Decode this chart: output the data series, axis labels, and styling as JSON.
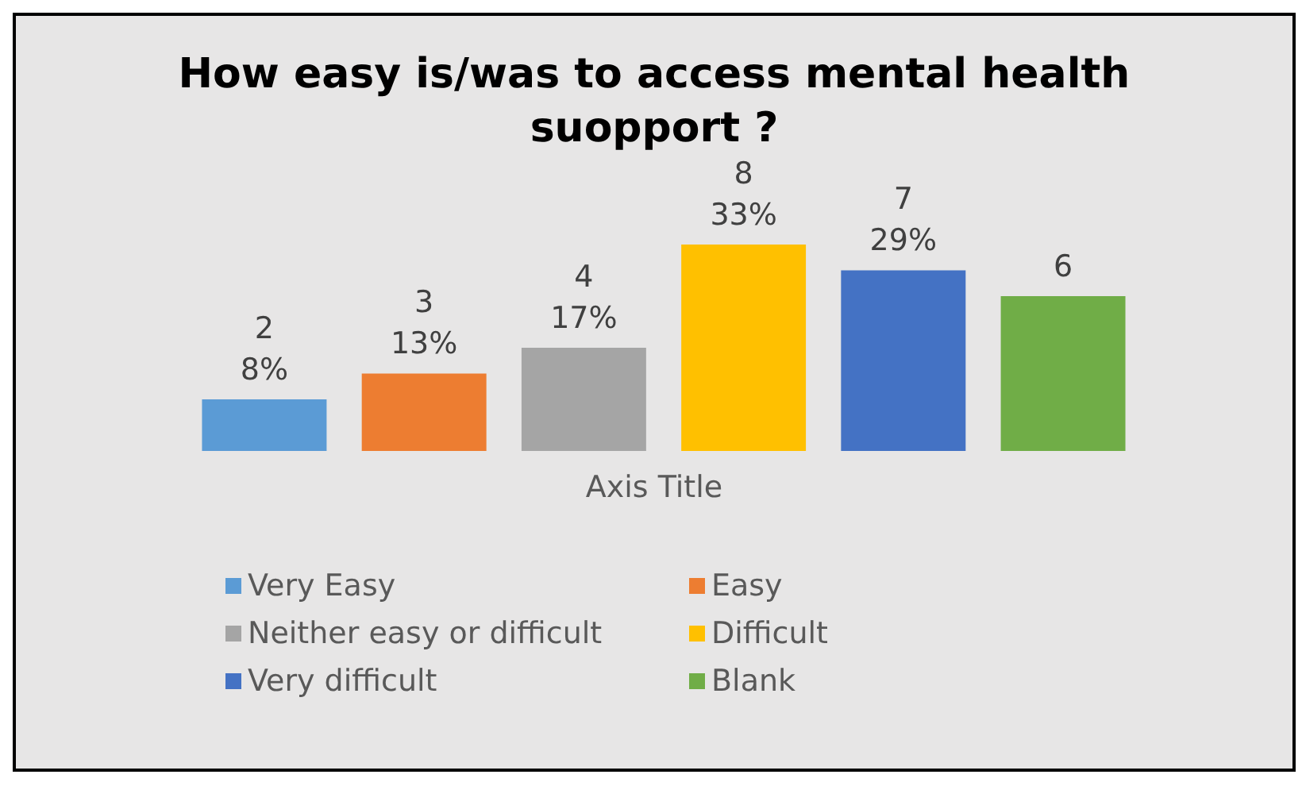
{
  "chart_data": {
    "type": "bar",
    "title": "How easy is/was to access mental health suopport ?",
    "xlabel": "Axis Title",
    "categories": [
      null
    ],
    "legend": "bottom",
    "series": [
      {
        "name": "Very Easy",
        "color": "#5b9bd5",
        "values": [
          2
        ],
        "value_labels": [
          "2\n8%"
        ]
      },
      {
        "name": "Easy",
        "color": "#ed7d31",
        "values": [
          3
        ],
        "value_labels": [
          "3\n13%"
        ]
      },
      {
        "name": "Neither easy or difficult",
        "color": "#a5a5a5",
        "values": [
          4
        ],
        "value_labels": [
          "4\n17%"
        ]
      },
      {
        "name": "Difficult",
        "color": "#ffc000",
        "values": [
          8
        ],
        "value_labels": [
          "8\n33%"
        ]
      },
      {
        "name": "Very difficult",
        "color": "#4472c4",
        "values": [
          7
        ],
        "value_labels": [
          "7\n29%"
        ]
      },
      {
        "name": "Blank",
        "color": "#70ad47",
        "values": [
          6
        ],
        "value_labels": [
          "6"
        ]
      }
    ]
  }
}
